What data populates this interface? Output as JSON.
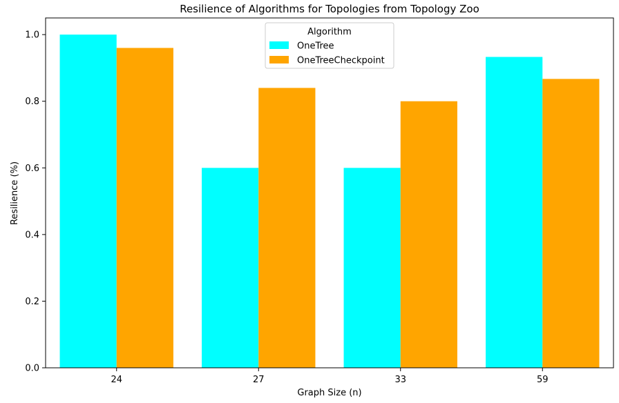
{
  "chart_data": {
    "type": "bar",
    "title": "Resilience of Algorithms for Topologies from Topology Zoo",
    "xlabel": "Graph Size (n)",
    "ylabel": "Resilience (%)",
    "categories": [
      "24",
      "27",
      "33",
      "59"
    ],
    "series": [
      {
        "name": "OneTree",
        "color": "#00ffff",
        "values": [
          1.0,
          0.6,
          0.6,
          0.933
        ]
      },
      {
        "name": "OneTreeCheckpoint",
        "color": "#ffa500",
        "values": [
          0.96,
          0.84,
          0.8,
          0.867
        ]
      }
    ],
    "ylim": [
      0,
      1.05
    ],
    "yticks": [
      "0.0",
      "0.2",
      "0.4",
      "0.6",
      "0.8",
      "1.0"
    ],
    "legend": {
      "title": "Algorithm",
      "placement": "upper center"
    },
    "grid": false
  }
}
